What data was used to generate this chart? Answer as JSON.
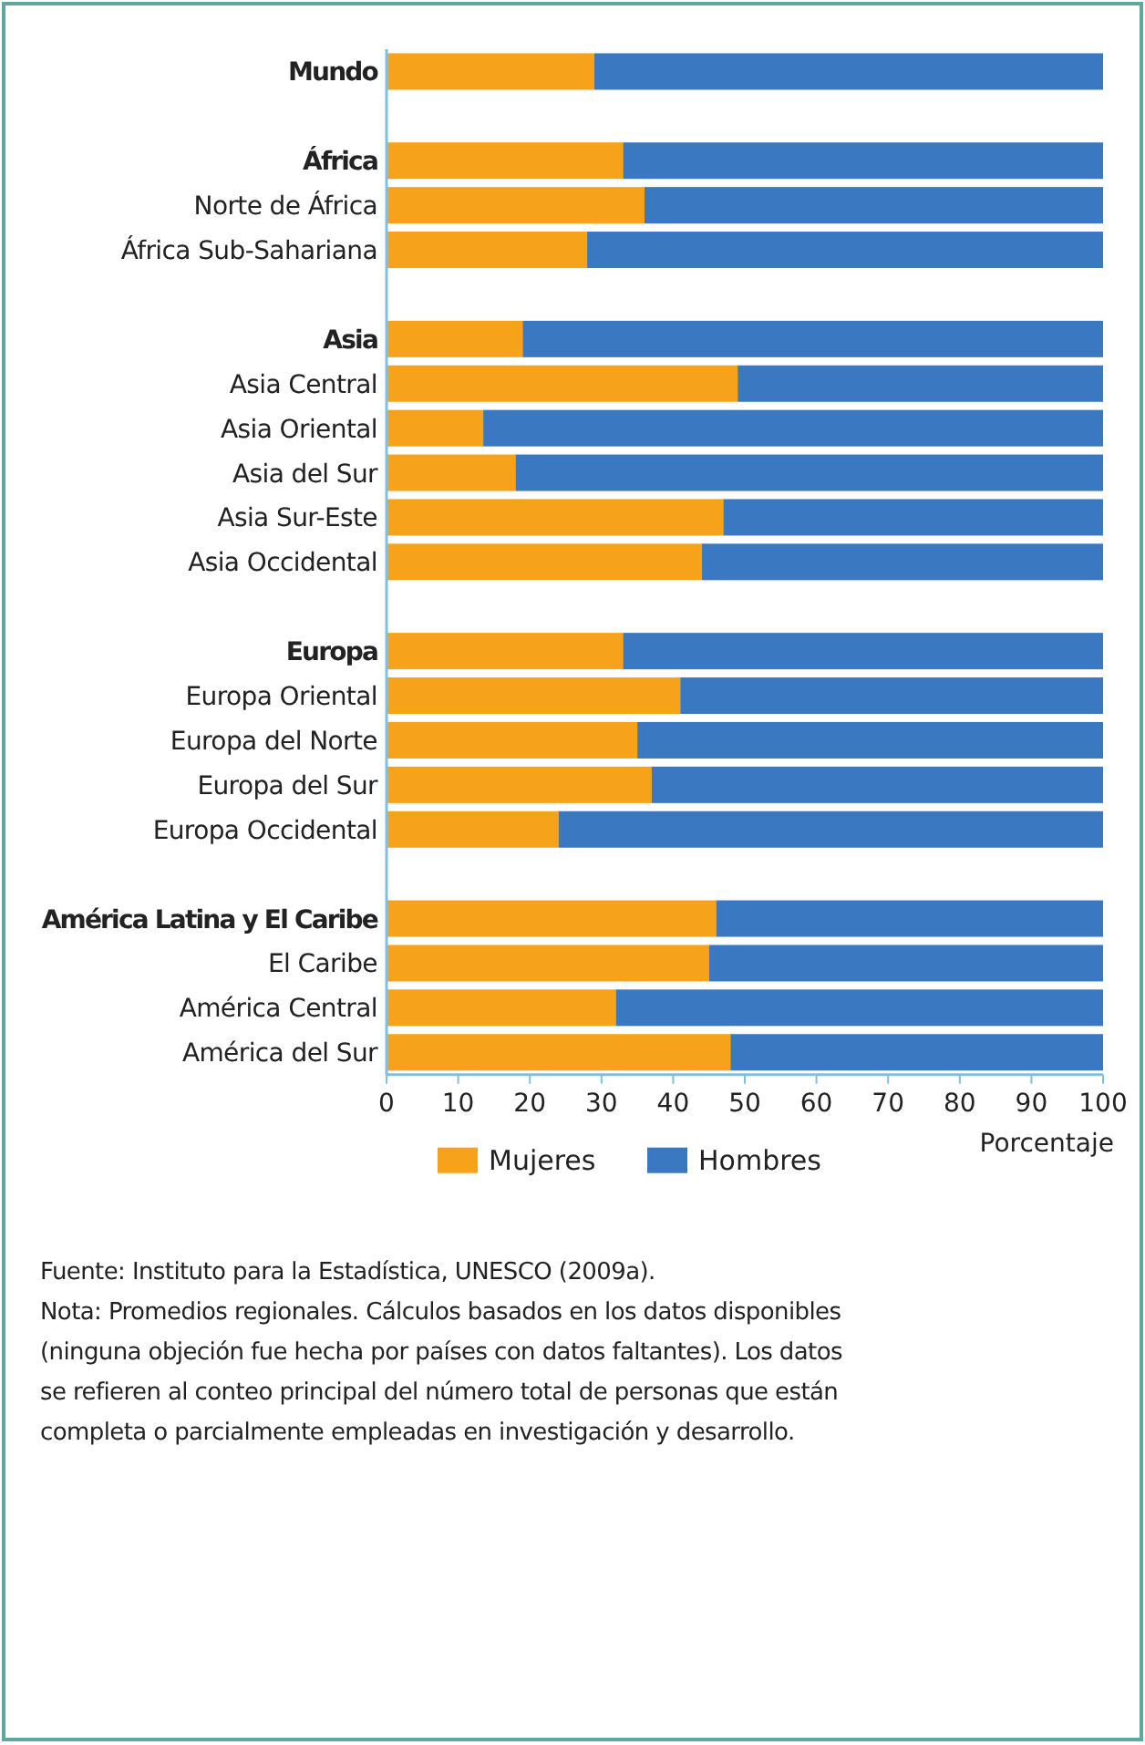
{
  "chart_data": {
    "type": "bar",
    "orientation": "horizontal",
    "stacked": true,
    "xlabel": "Porcentaje",
    "categories": [
      "Mundo",
      null,
      "África",
      "Norte de África",
      "África Sub-Sahariana",
      null,
      "Asia",
      "Asia Central",
      "Asia Oriental",
      "Asia del Sur",
      "Asia Sur-Este",
      "Asia Occidental",
      null,
      "Europa",
      "Europa Oriental",
      "Europa del Norte",
      "Europa del Sur",
      "Europa Occidental",
      null,
      "América Latina y El Caribe",
      "El Caribe",
      "América Central",
      "América del Sur"
    ],
    "series": [
      {
        "name": "Mujeres",
        "color": "#f7a21b",
        "values": [
          29,
          null,
          33,
          36,
          28,
          null,
          19,
          49,
          13.5,
          18,
          47,
          44,
          null,
          33,
          41,
          35,
          37,
          24,
          null,
          46,
          45,
          32,
          48
        ]
      },
      {
        "name": "Hombres",
        "color": "#3a78c2",
        "values": [
          71,
          null,
          67,
          64,
          72,
          null,
          81,
          51,
          86.5,
          82,
          53,
          56,
          null,
          67,
          59,
          65,
          63,
          76,
          null,
          54,
          55,
          68,
          52
        ]
      }
    ],
    "xlim": [
      0,
      100
    ],
    "xticks": [
      0,
      10,
      20,
      30,
      40,
      50,
      60,
      70,
      80,
      90,
      100
    ],
    "legend": "bottom",
    "grid": false,
    "annotations": [
      "Fuente: Instituto para la Estadística, UNESCO (2009a).",
      "Nota: Promedios regionales. Cálculos basados en los datos disponibles (ninguna objeción fue hecha por países con datos faltantes). Los datos se refieren al conteo principal del número total de personas que están completa o parcialmente empleadas en investigación y desarrollo."
    ]
  }
}
